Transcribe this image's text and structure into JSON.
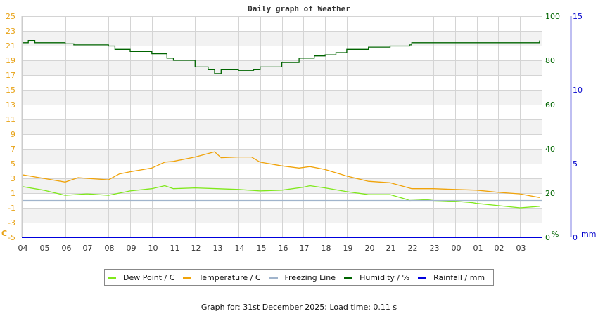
{
  "chart_data": {
    "type": "line",
    "title": "Daily graph of Weather",
    "xlabel": "",
    "x_ticks": [
      "04",
      "05",
      "06",
      "07",
      "08",
      "09",
      "10",
      "11",
      "12",
      "13",
      "14",
      "15",
      "16",
      "17",
      "18",
      "19",
      "20",
      "21",
      "22",
      "23",
      "00",
      "01",
      "02",
      "03"
    ],
    "x_range_hours": [
      0,
      24
    ],
    "y_left": {
      "label": "C",
      "ticks": [
        25,
        23,
        21,
        19,
        17,
        15,
        13,
        11,
        9,
        7,
        5,
        3,
        1,
        -1,
        -3,
        -5
      ],
      "range": [
        -5,
        25
      ],
      "color": "#e8a317"
    },
    "y_right_humidity": {
      "label": "%",
      "ticks": [
        100,
        80,
        60,
        40,
        20,
        0
      ],
      "range": [
        0,
        100
      ],
      "color": "#006400"
    },
    "y_right_rain": {
      "label": "mm",
      "ticks": [
        15,
        10,
        5,
        0
      ],
      "range": [
        0,
        15
      ],
      "color": "#0000cc"
    },
    "grid": true,
    "legend_position": "bottom",
    "series": [
      {
        "name": "Dew Point / C",
        "color": "#7fe81a",
        "axis": "left",
        "x": [
          0,
          1,
          2,
          3,
          4,
          5,
          6,
          6.6,
          7,
          8,
          9,
          10,
          11,
          12,
          13,
          13.3,
          14,
          15,
          16,
          17,
          17.7,
          17.9,
          18.7,
          19,
          20,
          20.8,
          21,
          22,
          23,
          23.9
        ],
        "values": [
          1.9,
          1.4,
          0.7,
          0.9,
          0.7,
          1.3,
          1.6,
          2.0,
          1.6,
          1.7,
          1.6,
          1.5,
          1.3,
          1.4,
          1.8,
          2.0,
          1.7,
          1.2,
          0.8,
          0.8,
          0.2,
          0.0,
          0.1,
          0.0,
          -0.1,
          -0.3,
          -0.4,
          -0.7,
          -1.0,
          -0.8
        ]
      },
      {
        "name": "Temperature / C",
        "color": "#f0a30a",
        "axis": "left",
        "x": [
          0,
          1,
          2,
          2.6,
          3,
          4,
          4.5,
          5,
          6,
          6.6,
          7,
          8,
          8.9,
          9.2,
          10,
          10.6,
          11,
          12,
          12.8,
          13.3,
          14,
          15,
          16,
          17,
          18,
          18.5,
          19,
          20,
          21,
          22,
          23,
          23.9
        ],
        "values": [
          3.5,
          3.0,
          2.5,
          3.1,
          3.0,
          2.8,
          3.6,
          3.9,
          4.4,
          5.2,
          5.3,
          5.9,
          6.6,
          5.8,
          5.9,
          5.9,
          5.2,
          4.7,
          4.4,
          4.6,
          4.2,
          3.3,
          2.6,
          2.4,
          1.6,
          1.6,
          1.6,
          1.5,
          1.4,
          1.1,
          0.9,
          0.4
        ]
      },
      {
        "name": "Freezing Line",
        "color": "#a0b4cc",
        "axis": "left",
        "x": [
          0,
          24
        ],
        "values": [
          0,
          0
        ]
      },
      {
        "name": "Humidity / %",
        "color": "#006400",
        "axis": "right_humidity",
        "x": [
          0,
          0.3,
          0.6,
          1,
          2,
          2.4,
          3,
          4,
          4.3,
          5,
          6,
          6.7,
          7,
          8,
          8.6,
          8.9,
          9.2,
          10,
          10.7,
          11,
          12,
          12.8,
          13.5,
          14,
          14.5,
          15,
          16,
          17,
          17.9,
          18,
          19,
          20,
          23.9
        ],
        "values": [
          88,
          89,
          88,
          88,
          87.5,
          87,
          87,
          86.5,
          85,
          84,
          83,
          81,
          80,
          77,
          76,
          74,
          76,
          75.5,
          76,
          77,
          79,
          81,
          82,
          82.5,
          83.5,
          85,
          86,
          86.5,
          87,
          88,
          88,
          88,
          89
        ]
      },
      {
        "name": "Rainfall / mm",
        "color": "#0000dd",
        "axis": "right_rain",
        "x": [
          0,
          24
        ],
        "values": [
          0,
          0
        ]
      }
    ]
  },
  "legend": {
    "items": [
      {
        "label": "Dew Point / C",
        "color": "#7fe81a"
      },
      {
        "label": "Temperature / C",
        "color": "#f0a30a"
      },
      {
        "label": "Freezing Line",
        "color": "#a0b4cc"
      },
      {
        "label": "Humidity / %",
        "color": "#006400"
      },
      {
        "label": "Rainfall / mm",
        "color": "#0000dd"
      }
    ]
  },
  "footer": {
    "text": "Graph for: 31st December 2025; Load time: 0.11 s"
  }
}
